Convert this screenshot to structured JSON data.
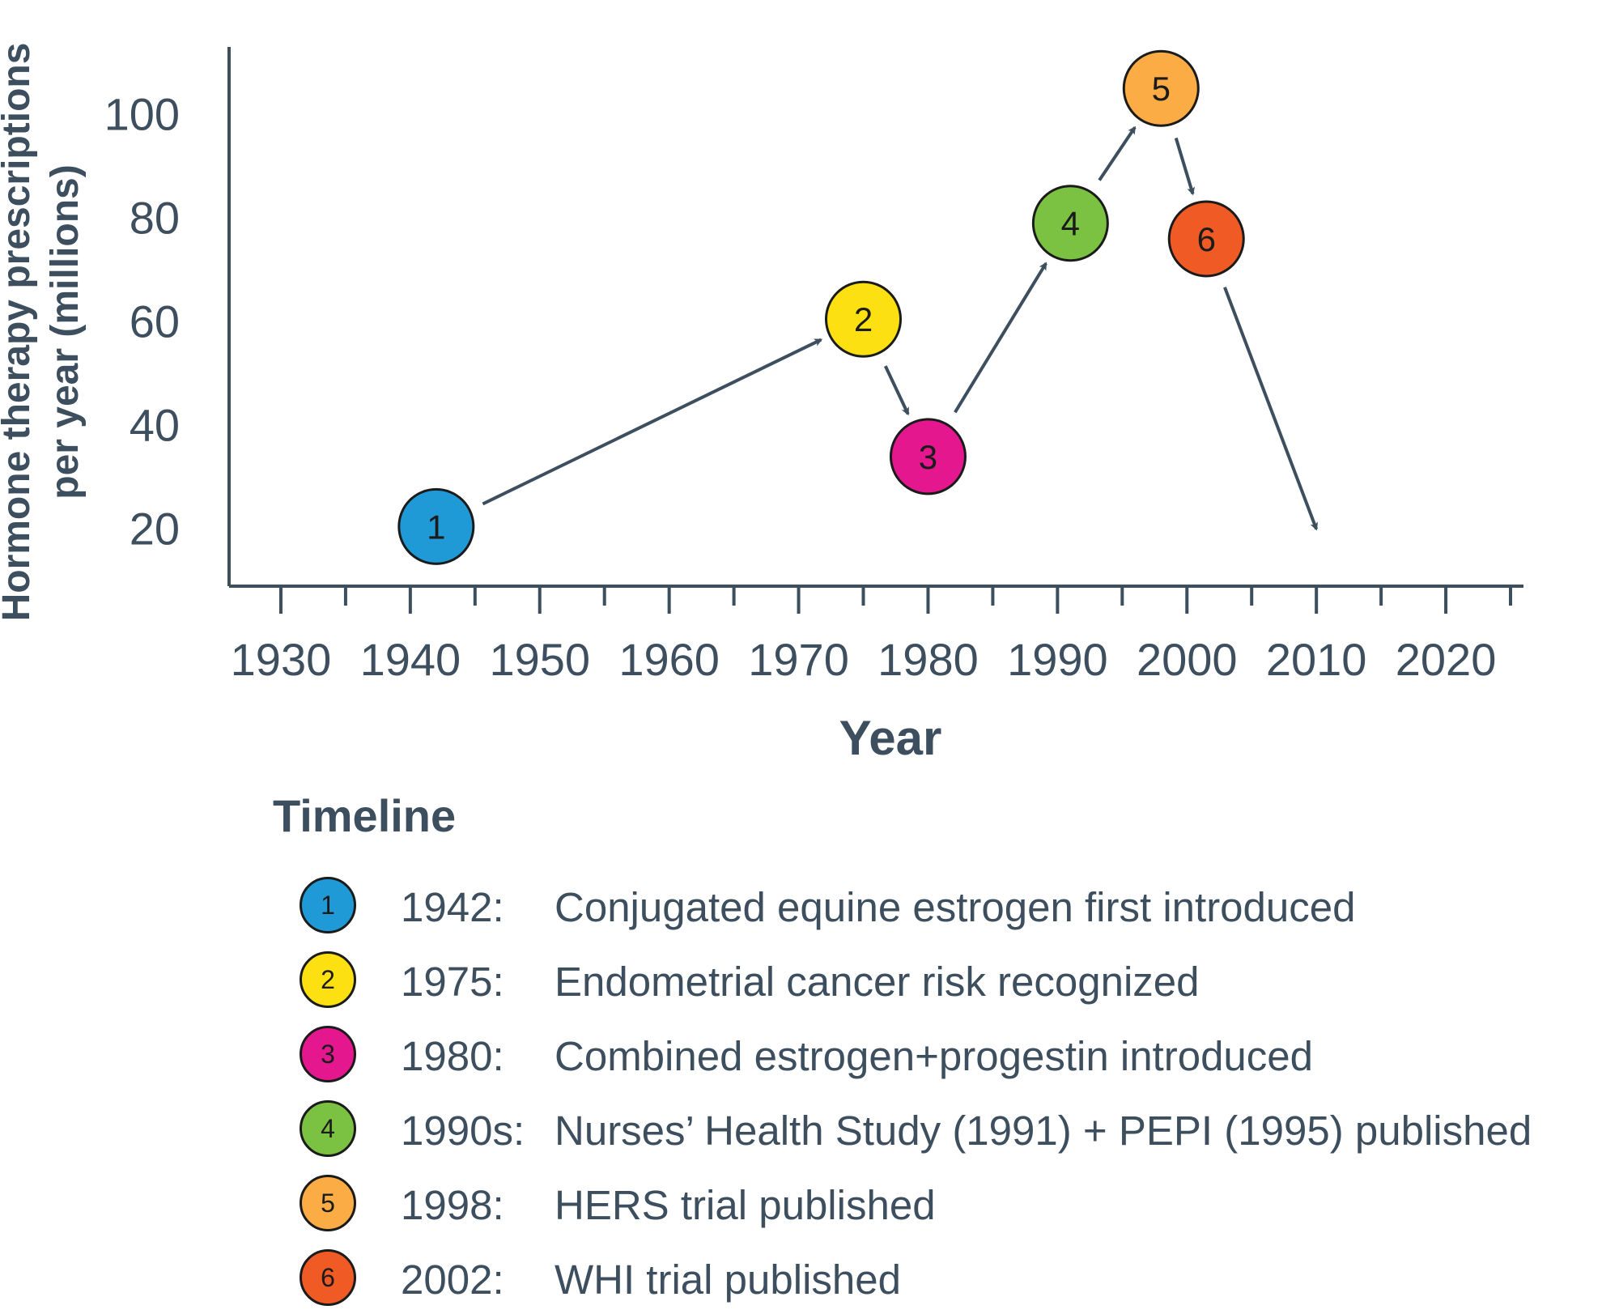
{
  "chart_data": {
    "type": "scatter",
    "xlabel": "Year",
    "ylabel_line1": "Hormone therapy prescriptions",
    "ylabel_line2": "per year (millions)",
    "x_ticks": [
      1930,
      1940,
      1950,
      1960,
      1970,
      1980,
      1990,
      2000,
      2010,
      2020
    ],
    "y_ticks": [
      20,
      40,
      60,
      80,
      100
    ],
    "xlim": [
      1926,
      2026
    ],
    "ylim": [
      9,
      113
    ],
    "grid": false,
    "points": [
      {
        "id": "1",
        "x": 1942,
        "y": 20.5,
        "color": "#1f9ad6"
      },
      {
        "id": "2",
        "x": 1975,
        "y": 60.5,
        "color": "#fde012"
      },
      {
        "id": "3",
        "x": 1980,
        "y": 34,
        "color": "#e5178f"
      },
      {
        "id": "4",
        "x": 1991,
        "y": 79,
        "color": "#7cc242"
      },
      {
        "id": "5",
        "x": 1998,
        "y": 105,
        "color": "#fbac45"
      },
      {
        "id": "6",
        "x": 2001.5,
        "y": 76,
        "color": "#ef5a25"
      }
    ],
    "trend_end": {
      "x": 2010,
      "y": 20
    },
    "arrow_color": "#3d4f5e"
  },
  "legend": {
    "title": "Timeline",
    "items": [
      {
        "num": "1",
        "year": "1942:",
        "text": "Conjugated equine estrogen first introduced",
        "color": "#1f9ad6"
      },
      {
        "num": "2",
        "year": "1975:",
        "text": "Endometrial cancer risk recognized",
        "color": "#fde012"
      },
      {
        "num": "3",
        "year": "1980:",
        "text": "Combined estrogen+progestin introduced",
        "color": "#e5178f"
      },
      {
        "num": "4",
        "year": "1990s:",
        "text": "Nurses’ Health Study (1991) + PEPI (1995) published",
        "color": "#7cc242"
      },
      {
        "num": "5",
        "year": "1998:",
        "text": "HERS trial published",
        "color": "#fbac45"
      },
      {
        "num": "6",
        "year": "2002:",
        "text": "WHI trial published",
        "color": "#ef5a25"
      }
    ]
  }
}
